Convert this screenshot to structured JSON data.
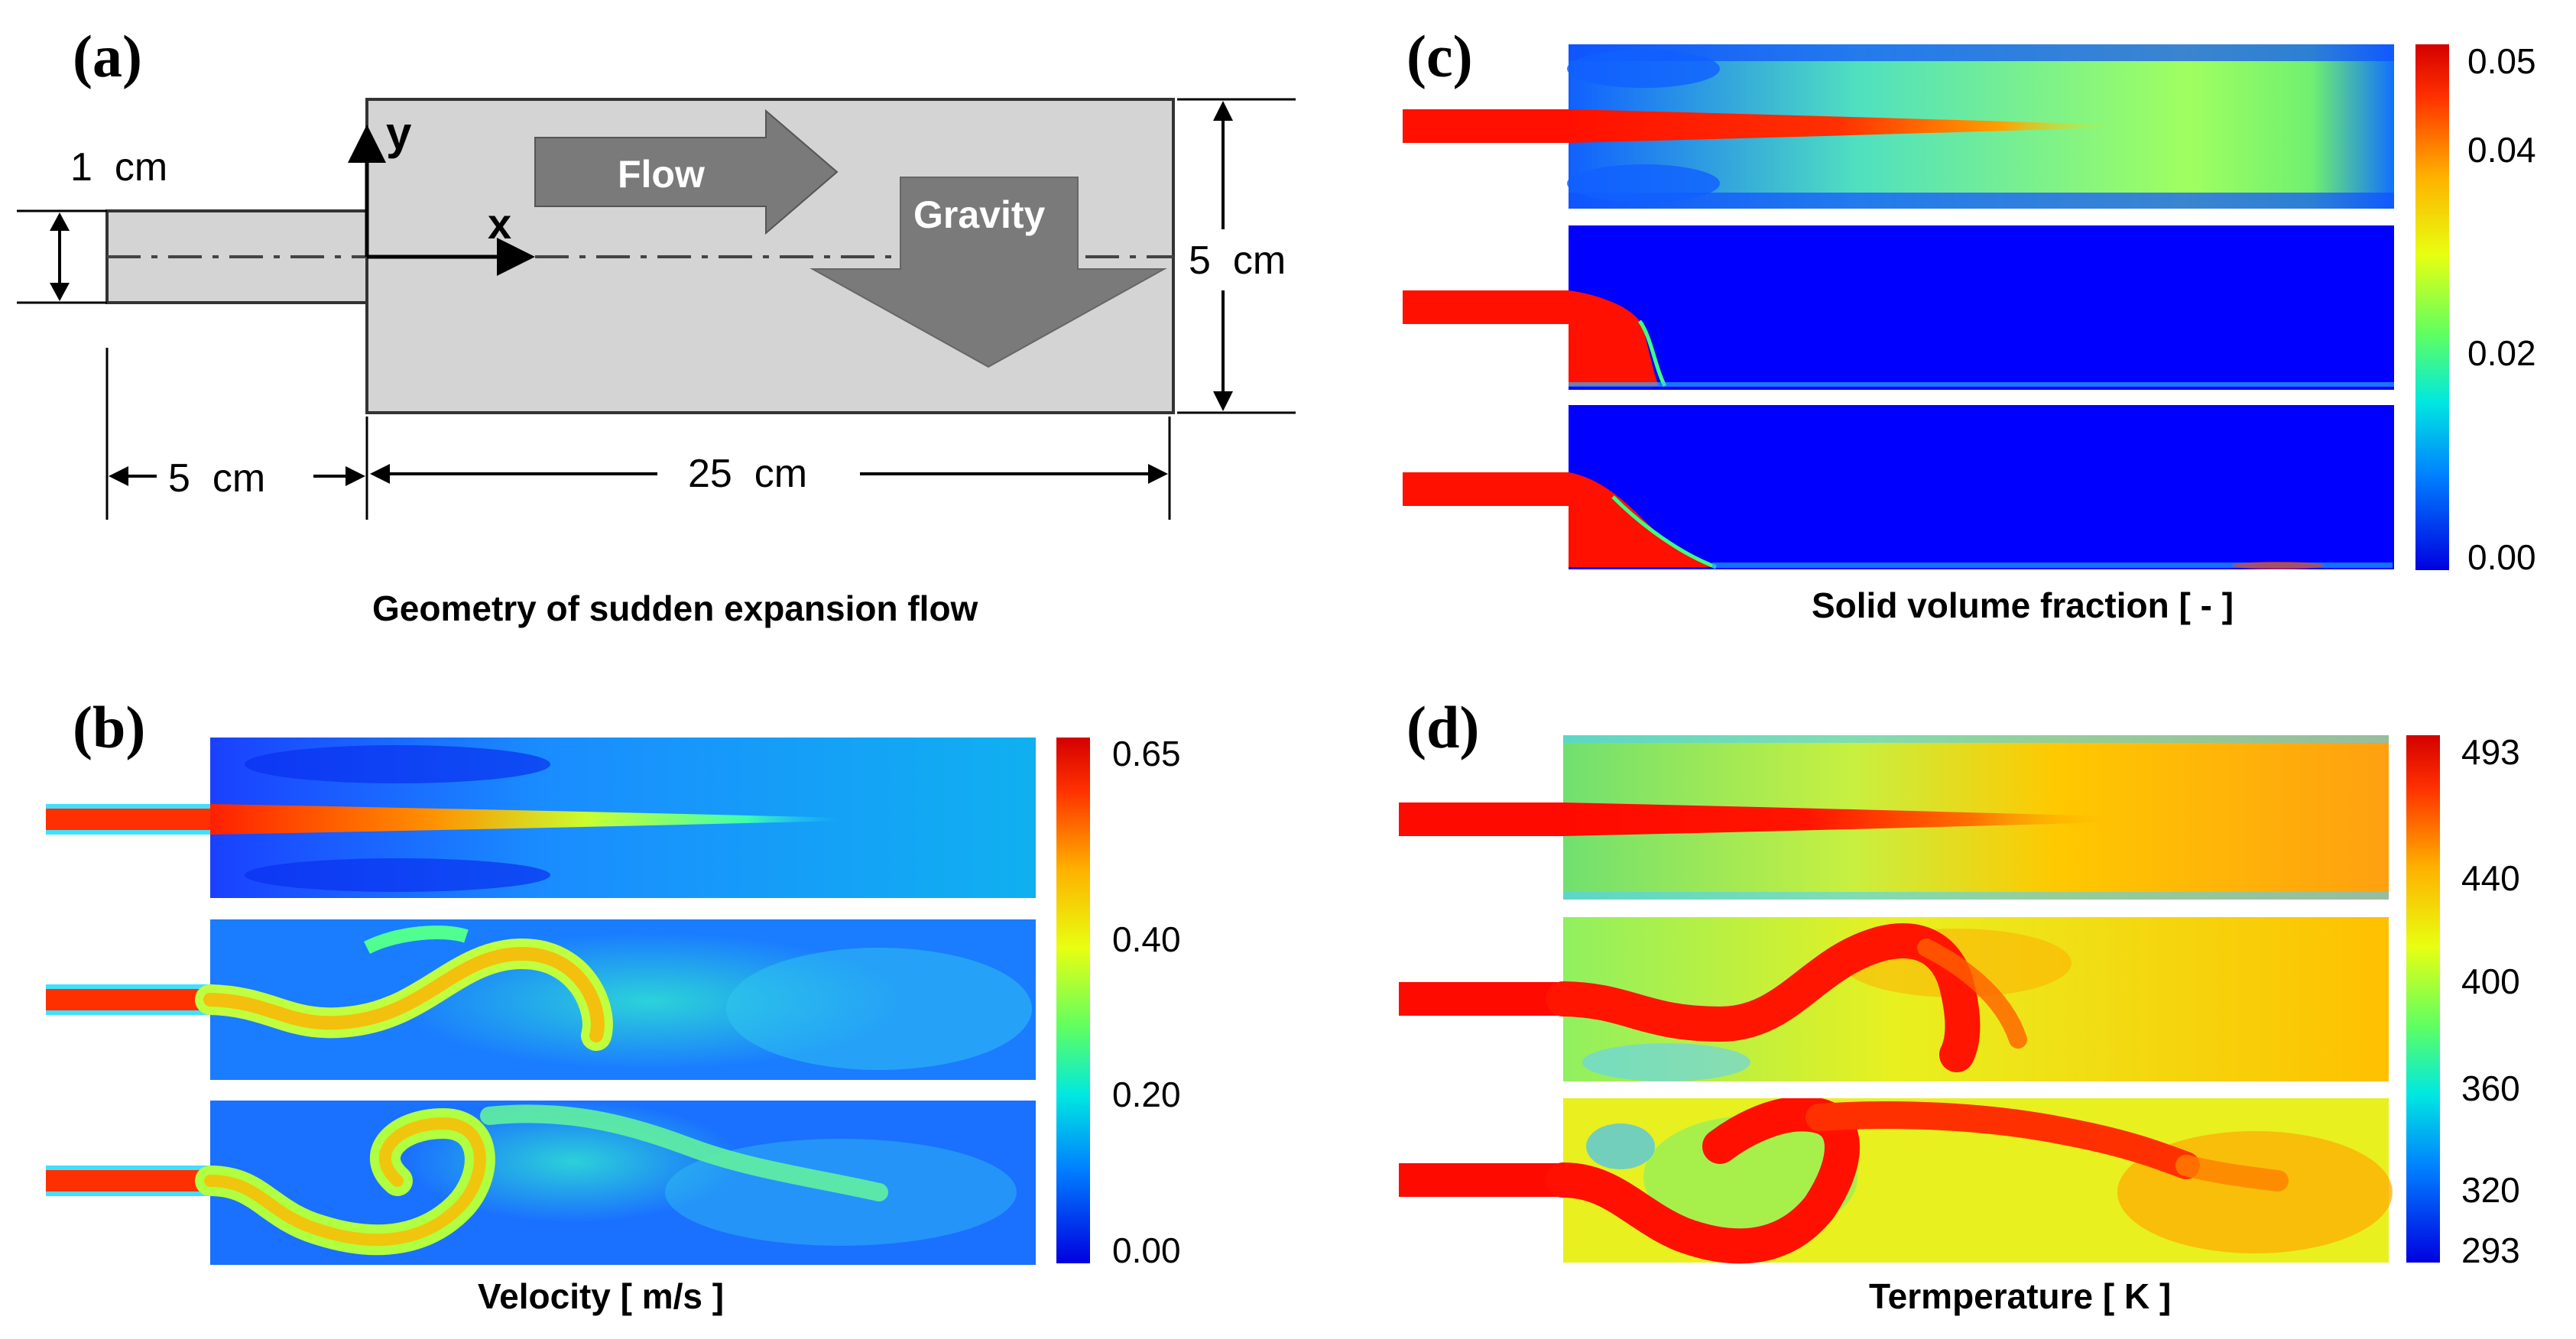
{
  "figure": {
    "panels": {
      "a": {
        "label": "(a)",
        "caption": "Geometry of sudden expansion flow",
        "dims": {
          "inlet_height": "1  cm",
          "inlet_length": "5  cm",
          "channel_length": "25  cm",
          "channel_height": "5  cm"
        },
        "axis_x": "x",
        "axis_y": "y",
        "flow_label": "Flow",
        "gravity_label": "Gravity"
      },
      "b": {
        "label": "(b)",
        "caption": "Velocity [ m/s ]",
        "colorbar_ticks": [
          "0.65",
          "0.40",
          "0.20",
          "0.00"
        ],
        "colorbar_values": [
          0.65,
          0.4,
          0.2,
          0.0
        ],
        "colorbar_range": [
          0.0,
          0.65
        ]
      },
      "c": {
        "label": "(c)",
        "caption": "Solid volume fraction [ - ]",
        "colorbar_ticks": [
          "0.05",
          "0.04",
          "0.02",
          "0.00"
        ],
        "colorbar_values": [
          0.05,
          0.04,
          0.02,
          0.0
        ],
        "colorbar_range": [
          0.0,
          0.05
        ]
      },
      "d": {
        "label": "(d)",
        "caption": "Termperature [ K ]",
        "colorbar_ticks": [
          "493",
          "440",
          "400",
          "360",
          "320",
          "293"
        ],
        "colorbar_values": [
          493,
          440,
          400,
          360,
          320,
          293
        ],
        "colorbar_range": [
          293,
          493
        ]
      }
    },
    "colors": {
      "jet": [
        "#00008f",
        "#0000ff",
        "#0080ff",
        "#00ffff",
        "#80ff80",
        "#ffff00",
        "#ff8000",
        "#ff0000",
        "#800000"
      ],
      "geometry_fill": "#d4d4d4",
      "arrow_fill": "#7a7a7a"
    }
  }
}
